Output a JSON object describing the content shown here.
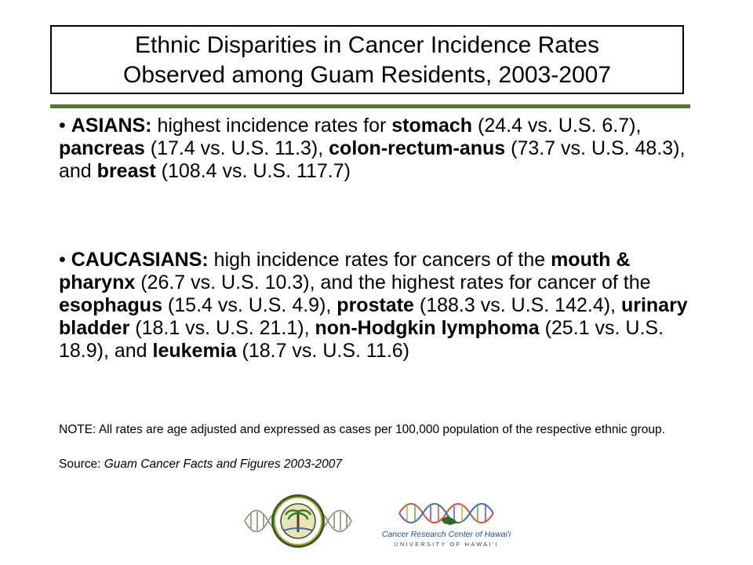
{
  "title": {
    "line1": "Ethnic Disparities in Cancer Incidence Rates",
    "line2": "Observed among Guam Residents, 2003-2007"
  },
  "bullet1": {
    "marker": "•",
    "t1": "ASIANS:",
    "t2": " highest incidence rates for ",
    "t3": "stomach",
    "t4": " (24.4 vs. U.S. 6.7), ",
    "t5": "pancreas",
    "t6": " (17.4 vs. U.S. 11.3), ",
    "t7": "colon-rectum-anus",
    "t8": " (73.7 vs. U.S. 48.3), and ",
    "t9": "breast",
    "t10": " (108.4 vs. U.S. 117.7)"
  },
  "bullet2": {
    "marker": "•",
    "t1": "CAUCASIANS:",
    "t2": " high incidence rates for cancers of the ",
    "t3": "mouth & pharynx",
    "t4": " (26.7 vs. U.S. 10.3), and the highest rates for cancer of the ",
    "t5": "esophagus",
    "t6": " (15.4 vs. U.S. 4.9), ",
    "t7": "prostate",
    "t8": " (188.3 vs. U.S. 142.4), ",
    "t9": "urinary bladder",
    "t10": " (18.1 vs. U.S. 21.1), ",
    "t11": "non-Hodgkin lymphoma",
    "t12": " (25.1 vs. U.S. 18.9), and ",
    "t13": "leukemia",
    "t14": " (18.7 vs. U.S. 11.6)"
  },
  "note": "NOTE: All rates are age adjusted and expressed as cases per 100,000 population of the respective ethnic group.",
  "source": {
    "label": "Source: ",
    "text": "Guam Cancer Facts and Figures 2003-2007"
  },
  "logos": {
    "crc_name": "Cancer Research Center of Hawai'i",
    "crc_sub": "UNIVERSITY OF HAWAI'I",
    "uh_seal_icon": "university-of-hawaii-seal-icon",
    "dna_icon": "dna-helix-icon"
  },
  "colors": {
    "rule": "#4a7d2a",
    "crc_text": "#1d4f8a"
  }
}
